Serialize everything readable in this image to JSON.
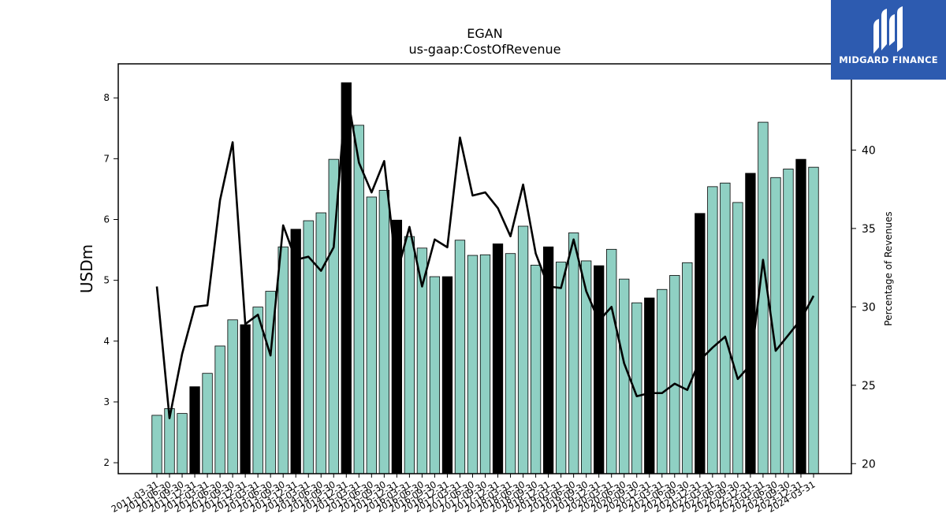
{
  "logo": {
    "brand": "MIDGARD FINANCE",
    "icon": "midgard-logo-icon",
    "background": "#2d5bb0"
  },
  "chart_data": {
    "type": "bar",
    "title": "EGAN",
    "subtitle": "us-gaap:CostOfRevenue",
    "ylabel": "USDm",
    "y2label": "Percentage of Revenues",
    "ylim": [
      1.82,
      8.56
    ],
    "y2lim": [
      19.36,
      45.5
    ],
    "yticks": [
      2,
      3,
      4,
      5,
      6,
      7,
      8
    ],
    "y2ticks": [
      20,
      25,
      30,
      35,
      40
    ],
    "grid": false,
    "bar_color": "#8fd0c3",
    "highlight_color": "#000000",
    "line_color": "#000000",
    "categories": [
      "2011-03-31",
      "2011-06-30",
      "2011-09-30",
      "2011-12-31",
      "2012-03-31",
      "2012-06-30",
      "2012-09-30",
      "2012-12-31",
      "2013-03-31",
      "2013-06-30",
      "2013-09-30",
      "2013-12-31",
      "2014-03-31",
      "2014-06-30",
      "2014-09-30",
      "2014-12-31",
      "2015-03-31",
      "2015-06-30",
      "2015-09-30",
      "2015-12-31",
      "2016-03-31",
      "2016-06-30",
      "2016-09-30",
      "2016-12-31",
      "2017-03-31",
      "2017-06-30",
      "2017-09-30",
      "2017-12-31",
      "2018-03-31",
      "2018-06-30",
      "2018-09-30",
      "2018-12-31",
      "2019-03-31",
      "2019-06-30",
      "2019-09-30",
      "2019-12-31",
      "2020-03-31",
      "2020-06-30",
      "2020-09-30",
      "2020-12-31",
      "2021-03-31",
      "2021-06-30",
      "2021-09-30",
      "2021-12-31",
      "2022-03-31",
      "2022-06-30",
      "2022-09-30",
      "2022-12-31",
      "2023-03-31",
      "2023-06-30",
      "2023-09-30",
      "2023-12-31",
      "2024-03-31"
    ],
    "series": [
      {
        "type": "bar",
        "values": [
          2.78,
          2.89,
          2.81,
          3.25,
          3.47,
          3.92,
          4.35,
          4.27,
          4.56,
          4.82,
          5.55,
          5.84,
          5.98,
          6.11,
          6.99,
          8.25,
          7.55,
          6.37,
          6.48,
          5.99,
          5.72,
          5.53,
          5.06,
          5.06,
          5.66,
          5.41,
          5.42,
          5.6,
          5.44,
          5.89,
          5.25,
          5.55,
          5.3,
          5.78,
          5.32,
          5.24,
          5.51,
          5.02,
          4.63,
          4.71,
          4.85,
          5.08,
          5.29,
          6.1,
          6.54,
          6.6,
          6.28,
          6.76,
          7.6,
          6.69,
          6.83,
          6.99,
          6.86
        ],
        "highlight": [
          false,
          false,
          false,
          true,
          false,
          false,
          false,
          true,
          false,
          false,
          false,
          true,
          false,
          false,
          false,
          true,
          false,
          false,
          false,
          true,
          false,
          false,
          false,
          true,
          false,
          false,
          false,
          true,
          false,
          false,
          false,
          true,
          false,
          false,
          false,
          true,
          false,
          false,
          false,
          true,
          false,
          false,
          false,
          true,
          false,
          false,
          false,
          true,
          false,
          false,
          false,
          true,
          false
        ]
      },
      {
        "type": "line",
        "axis": "right",
        "values": [
          31.3,
          22.9,
          27.0,
          30.0,
          30.1,
          36.8,
          40.5,
          28.9,
          29.5,
          26.9,
          35.2,
          33.0,
          33.2,
          32.3,
          33.8,
          43.9,
          39.2,
          37.3,
          39.3,
          32.1,
          35.1,
          31.3,
          34.3,
          33.8,
          40.8,
          37.1,
          37.3,
          36.3,
          34.5,
          37.8,
          33.4,
          31.3,
          31.2,
          34.3,
          31.0,
          29.1,
          30.0,
          26.4,
          24.3,
          24.5,
          24.5,
          25.1,
          24.7,
          26.6,
          27.4,
          28.1,
          25.4,
          26.3,
          33.0,
          27.2,
          28.2,
          29.2,
          30.7
        ]
      }
    ]
  }
}
